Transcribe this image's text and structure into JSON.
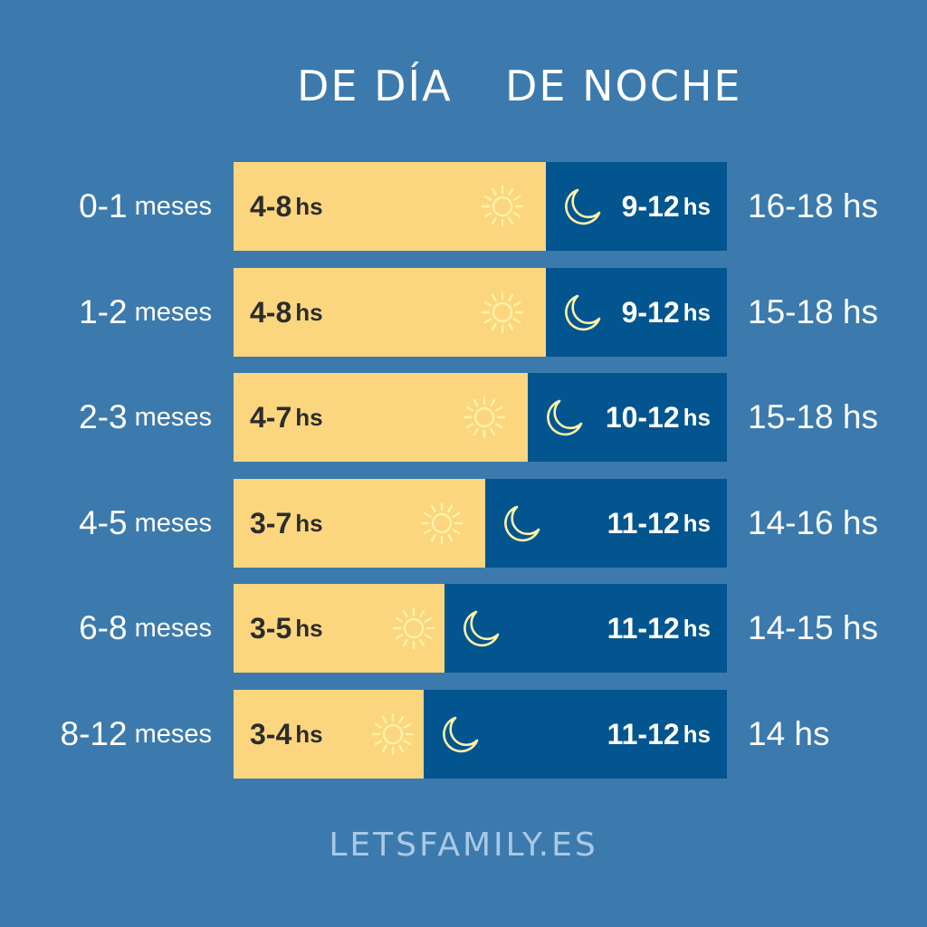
{
  "header": {
    "day_label": "DE DÍA",
    "night_label": "DE NOCHE"
  },
  "footer": {
    "site": "LETSFAMILY.ES"
  },
  "colors": {
    "background": "#3c7aad",
    "day": "#fbd67f",
    "night": "#02558f",
    "icon": "#fff3a8"
  },
  "chart_data": {
    "type": "bar",
    "stacked": true,
    "orientation": "horizontal",
    "categories": [
      "0-1",
      "1-2",
      "2-3",
      "4-5",
      "6-8",
      "8-12"
    ],
    "category_unit": "meses",
    "series": [
      {
        "label_text": [
          "4-8",
          "4-8",
          "4-7",
          "3-7",
          "3-5",
          "3-4"
        ],
        "ranges": [
          [
            4,
            8
          ],
          [
            4,
            8
          ],
          [
            4,
            7
          ],
          [
            3,
            7
          ],
          [
            3,
            5
          ],
          [
            3,
            4
          ]
        ]
      },
      {
        "label_text": [
          "9-12",
          "9-12",
          "10-12",
          "11-12",
          "11-12",
          "11-12"
        ],
        "ranges": [
          [
            9,
            12
          ],
          [
            9,
            12
          ],
          [
            10,
            12
          ],
          [
            11,
            12
          ],
          [
            11,
            12
          ],
          [
            11,
            12
          ]
        ]
      }
    ],
    "value_unit": "hs",
    "totals": [
      "16-18",
      "15-18",
      "15-18",
      "14-16",
      "14-15",
      "14"
    ],
    "icons": {
      "day": "sun-icon",
      "night": "moon-icon"
    },
    "xlim": [
      0,
      20
    ]
  }
}
